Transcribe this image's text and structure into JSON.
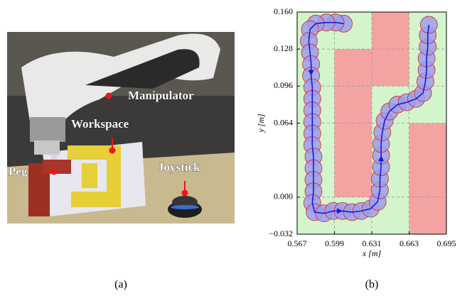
{
  "panel_a": {
    "labels": [
      "Manipulator",
      "Workspace",
      "Peg",
      "Joystick"
    ]
  },
  "captions": [
    "(a)",
    "(b)"
  ],
  "chart_data": {
    "type": "line",
    "xlabel": "x [m]",
    "ylabel": "y [m]",
    "xlim": [
      0.567,
      0.695
    ],
    "ylim": [
      -0.032,
      0.16
    ],
    "xticks": [
      0.567,
      0.599,
      0.631,
      0.663,
      0.695
    ],
    "yticks": [
      {
        "value": 0.16,
        "label": "0.160"
      },
      0.128,
      0.096,
      0.064,
      {
        "value": 0,
        "label": "0.000"
      },
      {
        "value": -0.032,
        "label": "−0.032"
      }
    ],
    "grid": true,
    "background": "#d4f5cc",
    "obstacle_color": "#f4a3a3",
    "obstacles": [
      {
        "x": [
          0.599,
          0.631
        ],
        "y": [
          0,
          0.128
        ]
      },
      {
        "x": [
          0.631,
          0.663
        ],
        "y": [
          0.096,
          0.16
        ]
      },
      {
        "x": [
          0.663,
          0.695
        ],
        "y": [
          -0.032,
          0.064
        ]
      }
    ],
    "color": "#1a1ad8",
    "circle_fill": "#9c9cec",
    "circle_edge": "#e02020",
    "x": [
      0.607,
      0.6,
      0.592,
      0.583,
      0.578,
      0.577,
      0.578,
      0.579,
      0.579,
      0.58,
      0.58,
      0.58,
      0.58,
      0.58,
      0.58,
      0.581,
      0.581,
      0.581,
      0.581,
      0.58,
      0.582,
      0.59,
      0.598,
      0.606,
      0.614,
      0.622,
      0.63,
      0.636,
      0.638,
      0.638,
      0.639,
      0.639,
      0.639,
      0.64,
      0.642,
      0.646,
      0.653,
      0.661,
      0.669,
      0.675,
      0.677,
      0.678,
      0.678,
      0.679,
      0.679,
      0.68
    ],
    "values": [
      0.15,
      0.151,
      0.151,
      0.15,
      0.145,
      0.135,
      0.125,
      0.115,
      0.105,
      0.095,
      0.085,
      0.075,
      0.065,
      0.055,
      0.045,
      0.035,
      0.025,
      0.015,
      0.005,
      -0.005,
      -0.013,
      -0.014,
      -0.012,
      -0.012,
      -0.013,
      -0.012,
      -0.01,
      -0.004,
      0.006,
      0.016,
      0.026,
      0.036,
      0.046,
      0.056,
      0.066,
      0.074,
      0.08,
      0.082,
      0.085,
      0.09,
      0.1,
      0.11,
      0.12,
      0.13,
      0.14,
      0.149
    ]
  }
}
